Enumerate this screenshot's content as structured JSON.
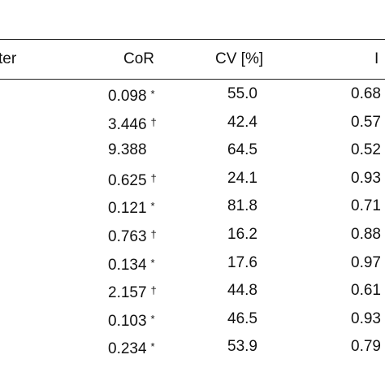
{
  "table": {
    "headers": {
      "param": "ter",
      "cor": "CoR",
      "cv": "CV [%]",
      "last": "I"
    },
    "rows": [
      {
        "cor": "0.098",
        "mark": "*",
        "cv": "55.0",
        "last": "0.68"
      },
      {
        "cor": "3.446",
        "mark": "†",
        "cv": "42.4",
        "last": "0.57"
      },
      {
        "cor": "9.388",
        "mark": "",
        "cv": "64.5",
        "last": "0.52"
      },
      {
        "cor": "0.625",
        "mark": "†",
        "cv": "24.1",
        "last": "0.93"
      },
      {
        "cor": "0.121",
        "mark": "*",
        "cv": "81.8",
        "last": "0.71"
      },
      {
        "cor": "0.763",
        "mark": "†",
        "cv": "16.2",
        "last": "0.88"
      },
      {
        "cor": "0.134",
        "mark": "*",
        "cv": "17.6",
        "last": "0.97"
      },
      {
        "cor": "2.157",
        "mark": "†",
        "cv": "44.8",
        "last": "0.61"
      },
      {
        "cor": "0.103",
        "mark": "*",
        "cv": "46.5",
        "last": "0.93"
      },
      {
        "cor": "0.234",
        "mark": "*",
        "cv": "53.9",
        "last": "0.79"
      }
    ]
  }
}
